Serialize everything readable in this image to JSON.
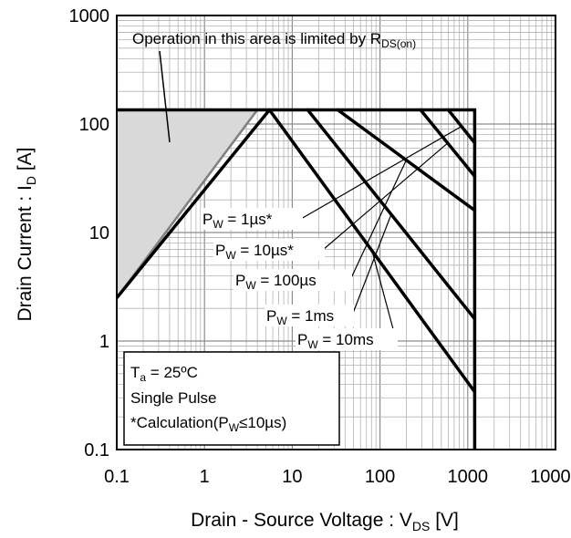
{
  "chart_data": {
    "type": "line",
    "xscale": "log",
    "yscale": "log",
    "xlim": [
      0.1,
      10000
    ],
    "ylim": [
      0.1,
      1000
    ],
    "grid": true,
    "x_ticks": [
      "0.1",
      "1",
      "10",
      "100",
      "1000",
      "10000"
    ],
    "y_ticks": [
      "0.1",
      "1",
      "10",
      "100",
      "1000"
    ],
    "xlabel": {
      "main": "Drain - Source Voltage : V",
      "sub": "DS",
      "unit": " [V]"
    },
    "ylabel": {
      "main": "Drain Current : I",
      "sub": "D",
      "unit": " [A]"
    },
    "rds_annotation": {
      "main": "Operation in this area is limited by R",
      "sub": "DS(on)"
    },
    "limits": {
      "id_max": 135,
      "vds_max": 1200
    },
    "rds_on_line": {
      "x": [
        0.1,
        4
      ],
      "y": [
        2.5,
        135
      ]
    },
    "series": [
      {
        "name": {
          "p": "P",
          "sub": "W",
          "rest": " = 1µs*"
        },
        "x": [
          600,
          1200
        ],
        "y": [
          135,
          67
        ]
      },
      {
        "name": {
          "p": "P",
          "sub": "W",
          "rest": " = 10µs*"
        },
        "x": [
          290,
          1200
        ],
        "y": [
          135,
          33
        ]
      },
      {
        "name": {
          "p": "P",
          "sub": "W",
          "rest": " = 100µs"
        },
        "x": [
          33,
          1200
        ],
        "y": [
          135,
          16
        ]
      },
      {
        "name": {
          "p": "P",
          "sub": "W",
          "rest": " = 1ms"
        },
        "x": [
          15,
          1200
        ],
        "y": [
          135,
          1.6
        ]
      },
      {
        "name": {
          "p": "P",
          "sub": "W",
          "rest": " = 10ms"
        },
        "x": [
          5.5,
          1200
        ],
        "y": [
          135,
          0.34
        ]
      }
    ],
    "annotations": {
      "ta": {
        "p": "T",
        "sub": "a",
        "rest": " = 25ºC"
      },
      "pulse": "Single Pulse",
      "calc": {
        "pre": "*Calculation(P",
        "sub": "W",
        "rest": "≤10µs)"
      }
    }
  }
}
